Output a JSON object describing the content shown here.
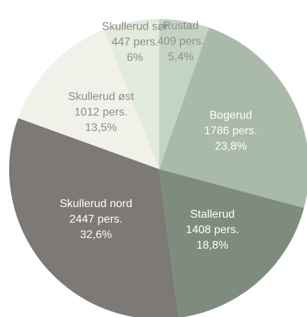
{
  "chart_data": {
    "type": "pie",
    "categories": [
      "Rustad",
      "Bogerud",
      "Stallerud",
      "Skullerud nord",
      "Skullerud øst",
      "Skullerud sør"
    ],
    "values": [
      5.4,
      23.8,
      18.8,
      32.6,
      13.5,
      6
    ],
    "value_labels": [
      "5,4%",
      "23,8%",
      "18,8%",
      "32,6%",
      "13,5%",
      "6%"
    ],
    "persons": [
      409,
      1786,
      1408,
      2447,
      1012,
      447
    ],
    "person_labels": [
      "409 pers.",
      "1786 pers.",
      "1408 pers.",
      "2447 pers.",
      "1012 pers.",
      "447 pers."
    ],
    "colors": [
      "#c4d4c3",
      "#a9baa8",
      "#7e8c7e",
      "#7c7976",
      "#f1f1e9",
      "#e3ebdc"
    ],
    "label_colors": [
      "#8c8c8c",
      "#ffffff",
      "#ffffff",
      "#ffffff",
      "#8c8c8c",
      "#8c8c8c"
    ]
  }
}
